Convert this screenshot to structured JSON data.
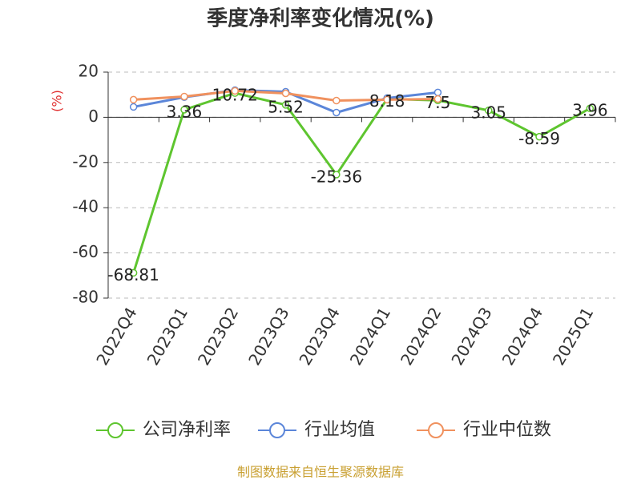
{
  "chart_data": {
    "type": "line",
    "title": "季度净利率变化情况(%)",
    "y_label": "(%)",
    "categories": [
      "2022Q4",
      "2023Q1",
      "2023Q2",
      "2023Q3",
      "2023Q4",
      "2024Q1",
      "2024Q2",
      "2024Q3",
      "2024Q4",
      "2025Q1"
    ],
    "series": [
      {
        "name": "公司净利率",
        "color": "#5ec52f",
        "values": [
          -68.81,
          3.36,
          10.72,
          5.52,
          -25.36,
          8.18,
          7.5,
          3.05,
          -8.59,
          3.96
        ],
        "labels": true
      },
      {
        "name": "行业均值",
        "color": "#5b86d9",
        "values": [
          4.6,
          8.9,
          12,
          11.3,
          2.1,
          8.5,
          11,
          null,
          null,
          null
        ]
      },
      {
        "name": "行业中位数",
        "color": "#f0915e",
        "values": [
          7.8,
          9.2,
          11.7,
          10.6,
          7.4,
          7.8,
          8.1,
          null,
          null,
          null
        ]
      }
    ],
    "ylim": [
      -80,
      20
    ],
    "yticks": [
      20,
      0,
      -20,
      -40,
      -60,
      -80
    ],
    "grid": true,
    "source": "制图数据来自恒生聚源数据库"
  }
}
